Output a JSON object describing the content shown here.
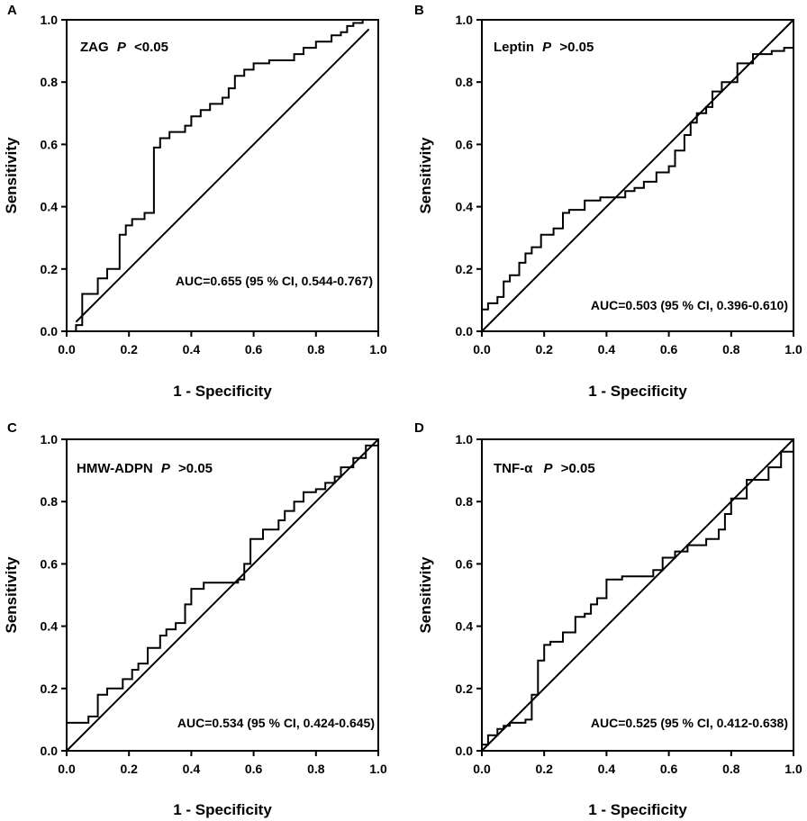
{
  "chart_data": [
    {
      "type": "line",
      "panel": "A",
      "marker": "ZAG",
      "p_label": "P",
      "p_text": "<0.05",
      "auc_text": "AUC=0.655 (95 % CI, 0.544-0.767)",
      "xlabel": "1 - Specificity",
      "ylabel": "Sensitivity",
      "xlim": [
        0,
        1
      ],
      "ylim": [
        0,
        1
      ],
      "xticks": [
        "0.0",
        "0.2",
        "0.4",
        "0.6",
        "0.8",
        "1.0"
      ],
      "yticks": [
        "0.0",
        "0.2",
        "0.4",
        "0.6",
        "0.8",
        "1.0"
      ],
      "reference_line": {
        "name": "reference",
        "x": [
          0.03,
          0.97
        ],
        "y": [
          0.03,
          0.97
        ]
      },
      "series": [
        {
          "name": "ROC",
          "x": [
            0.03,
            0.03,
            0.05,
            0.05,
            0.1,
            0.1,
            0.13,
            0.13,
            0.17,
            0.17,
            0.19,
            0.19,
            0.21,
            0.21,
            0.25,
            0.25,
            0.28,
            0.28,
            0.3,
            0.3,
            0.33,
            0.33,
            0.38,
            0.38,
            0.4,
            0.4,
            0.43,
            0.43,
            0.46,
            0.46,
            0.5,
            0.5,
            0.52,
            0.52,
            0.54,
            0.54,
            0.57,
            0.57,
            0.6,
            0.6,
            0.65,
            0.65,
            0.73,
            0.73,
            0.76,
            0.76,
            0.8,
            0.8,
            0.85,
            0.85,
            0.88,
            0.88,
            0.9,
            0.9,
            0.92,
            0.92,
            0.95,
            0.95,
            0.97
          ],
          "y": [
            0.0,
            0.02,
            0.02,
            0.12,
            0.12,
            0.17,
            0.17,
            0.2,
            0.2,
            0.31,
            0.31,
            0.34,
            0.34,
            0.36,
            0.36,
            0.38,
            0.38,
            0.59,
            0.59,
            0.62,
            0.62,
            0.64,
            0.64,
            0.66,
            0.66,
            0.69,
            0.69,
            0.71,
            0.71,
            0.73,
            0.73,
            0.75,
            0.75,
            0.78,
            0.78,
            0.82,
            0.82,
            0.84,
            0.84,
            0.86,
            0.86,
            0.87,
            0.87,
            0.89,
            0.89,
            0.91,
            0.91,
            0.93,
            0.93,
            0.95,
            0.95,
            0.96,
            0.96,
            0.98,
            0.98,
            0.99,
            0.99,
            1.0,
            1.0
          ]
        }
      ]
    },
    {
      "type": "line",
      "panel": "B",
      "marker": "Leptin",
      "p_label": "P",
      "p_text": ">0.05",
      "auc_text": "AUC=0.503 (95 % CI, 0.396-0.610)",
      "xlabel": "1 - Specificity",
      "ylabel": "Sensitivity",
      "xlim": [
        0,
        1
      ],
      "ylim": [
        0,
        1
      ],
      "xticks": [
        "0.0",
        "0.2",
        "0.4",
        "0.6",
        "0.8",
        "1.0"
      ],
      "yticks": [
        "0.0",
        "0.2",
        "0.4",
        "0.6",
        "0.8",
        "1.0"
      ],
      "reference_line": {
        "name": "reference",
        "x": [
          0,
          1
        ],
        "y": [
          0,
          1
        ]
      },
      "series": [
        {
          "name": "ROC",
          "x": [
            0.0,
            0.0,
            0.02,
            0.02,
            0.05,
            0.05,
            0.07,
            0.07,
            0.09,
            0.09,
            0.12,
            0.12,
            0.14,
            0.14,
            0.16,
            0.16,
            0.19,
            0.19,
            0.23,
            0.23,
            0.26,
            0.26,
            0.28,
            0.28,
            0.33,
            0.33,
            0.38,
            0.38,
            0.46,
            0.46,
            0.49,
            0.49,
            0.52,
            0.52,
            0.56,
            0.56,
            0.6,
            0.6,
            0.62,
            0.62,
            0.65,
            0.65,
            0.67,
            0.67,
            0.69,
            0.69,
            0.72,
            0.72,
            0.74,
            0.74,
            0.77,
            0.77,
            0.82,
            0.82,
            0.87,
            0.87,
            0.93,
            0.93,
            0.97,
            0.97,
            1.0
          ],
          "y": [
            0.0,
            0.07,
            0.07,
            0.09,
            0.09,
            0.11,
            0.11,
            0.16,
            0.16,
            0.18,
            0.18,
            0.22,
            0.22,
            0.25,
            0.25,
            0.27,
            0.27,
            0.31,
            0.31,
            0.33,
            0.33,
            0.38,
            0.38,
            0.39,
            0.39,
            0.42,
            0.42,
            0.43,
            0.43,
            0.45,
            0.45,
            0.46,
            0.46,
            0.48,
            0.48,
            0.51,
            0.51,
            0.53,
            0.53,
            0.58,
            0.58,
            0.63,
            0.63,
            0.67,
            0.67,
            0.7,
            0.7,
            0.72,
            0.72,
            0.77,
            0.77,
            0.8,
            0.8,
            0.86,
            0.86,
            0.89,
            0.89,
            0.9,
            0.9,
            0.91,
            0.91
          ]
        }
      ]
    },
    {
      "type": "line",
      "panel": "C",
      "marker": "HMW-ADPN",
      "p_label": "P",
      "p_text": ">0.05",
      "auc_text": "AUC=0.534 (95 % CI, 0.424-0.645)",
      "xlabel": "1 - Specificity",
      "ylabel": "Sensitivity",
      "xlim": [
        0,
        1
      ],
      "ylim": [
        0,
        1
      ],
      "xticks": [
        "0.0",
        "0.2",
        "0.4",
        "0.6",
        "0.8",
        "1.0"
      ],
      "yticks": [
        "0.0",
        "0.2",
        "0.4",
        "0.6",
        "0.8",
        "1.0"
      ],
      "reference_line": {
        "name": "reference",
        "x": [
          0,
          1
        ],
        "y": [
          0,
          1
        ]
      },
      "series": [
        {
          "name": "ROC",
          "x": [
            0.0,
            0.0,
            0.07,
            0.07,
            0.1,
            0.1,
            0.13,
            0.13,
            0.18,
            0.18,
            0.21,
            0.21,
            0.23,
            0.23,
            0.26,
            0.26,
            0.3,
            0.3,
            0.32,
            0.32,
            0.35,
            0.35,
            0.38,
            0.38,
            0.4,
            0.4,
            0.44,
            0.44,
            0.55,
            0.55,
            0.57,
            0.57,
            0.59,
            0.59,
            0.63,
            0.63,
            0.68,
            0.68,
            0.7,
            0.7,
            0.73,
            0.73,
            0.76,
            0.76,
            0.8,
            0.8,
            0.83,
            0.83,
            0.86,
            0.86,
            0.88,
            0.88,
            0.92,
            0.92,
            0.96,
            0.96,
            1.0
          ],
          "y": [
            0.0,
            0.09,
            0.09,
            0.11,
            0.11,
            0.18,
            0.18,
            0.2,
            0.2,
            0.23,
            0.23,
            0.26,
            0.26,
            0.28,
            0.28,
            0.33,
            0.33,
            0.37,
            0.37,
            0.39,
            0.39,
            0.41,
            0.41,
            0.47,
            0.47,
            0.52,
            0.52,
            0.54,
            0.54,
            0.55,
            0.55,
            0.6,
            0.6,
            0.68,
            0.68,
            0.71,
            0.71,
            0.74,
            0.74,
            0.77,
            0.77,
            0.8,
            0.8,
            0.83,
            0.83,
            0.84,
            0.84,
            0.86,
            0.86,
            0.88,
            0.88,
            0.91,
            0.91,
            0.94,
            0.94,
            0.98,
            0.98
          ]
        }
      ]
    },
    {
      "type": "line",
      "panel": "D",
      "marker": "TNF-α",
      "p_label": "P",
      "p_text": ">0.05",
      "auc_text": "AUC=0.525 (95 % CI, 0.412-0.638)",
      "xlabel": "1 - Specificity",
      "ylabel": "Sensitivity",
      "xlim": [
        0,
        1
      ],
      "ylim": [
        0,
        1
      ],
      "xticks": [
        "0.0",
        "0.2",
        "0.4",
        "0.6",
        "0.8",
        "1.0"
      ],
      "yticks": [
        "0.0",
        "0.2",
        "0.4",
        "0.6",
        "0.8",
        "1.0"
      ],
      "reference_line": {
        "name": "reference",
        "x": [
          0,
          1
        ],
        "y": [
          0,
          1
        ]
      },
      "series": [
        {
          "name": "ROC",
          "x": [
            0.0,
            0.0,
            0.02,
            0.02,
            0.05,
            0.05,
            0.07,
            0.07,
            0.09,
            0.09,
            0.14,
            0.14,
            0.16,
            0.16,
            0.18,
            0.18,
            0.2,
            0.2,
            0.22,
            0.22,
            0.26,
            0.26,
            0.3,
            0.3,
            0.33,
            0.33,
            0.35,
            0.35,
            0.37,
            0.37,
            0.4,
            0.4,
            0.45,
            0.45,
            0.55,
            0.55,
            0.58,
            0.58,
            0.62,
            0.62,
            0.66,
            0.66,
            0.72,
            0.72,
            0.76,
            0.76,
            0.78,
            0.78,
            0.8,
            0.8,
            0.85,
            0.85,
            0.92,
            0.92,
            0.96,
            0.96,
            1.0
          ],
          "y": [
            0.0,
            0.02,
            0.02,
            0.05,
            0.05,
            0.07,
            0.07,
            0.08,
            0.08,
            0.09,
            0.09,
            0.1,
            0.1,
            0.18,
            0.18,
            0.29,
            0.29,
            0.34,
            0.34,
            0.35,
            0.35,
            0.38,
            0.38,
            0.43,
            0.43,
            0.44,
            0.44,
            0.47,
            0.47,
            0.49,
            0.49,
            0.55,
            0.55,
            0.56,
            0.56,
            0.58,
            0.58,
            0.62,
            0.62,
            0.64,
            0.64,
            0.66,
            0.66,
            0.68,
            0.68,
            0.71,
            0.71,
            0.76,
            0.76,
            0.81,
            0.81,
            0.87,
            0.87,
            0.91,
            0.91,
            0.96,
            0.96
          ]
        }
      ]
    }
  ]
}
